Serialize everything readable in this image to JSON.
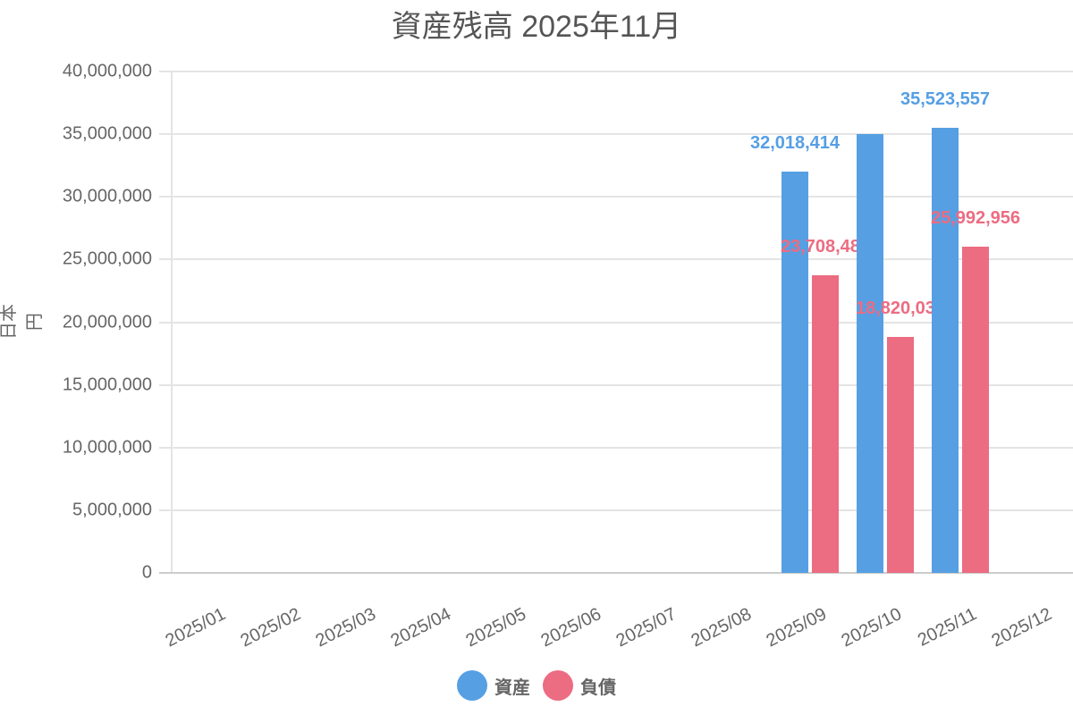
{
  "title": "資産残高 2025年11月",
  "colors": {
    "assets": "#569fe3",
    "liabilities": "#ec6c82"
  },
  "chart_data": {
    "type": "bar",
    "title": "資産残高 2025年11月",
    "xlabel": "",
    "ylabel": "日本円",
    "ylim": [
      0,
      40000000
    ],
    "yticks": [
      "0",
      "5,000,000",
      "10,000,000",
      "15,000,000",
      "20,000,000",
      "25,000,000",
      "30,000,000",
      "35,000,000",
      "40,000,000"
    ],
    "categories": [
      "2025/01",
      "2025/02",
      "2025/03",
      "2025/04",
      "2025/05",
      "2025/06",
      "2025/07",
      "2025/08",
      "2025/09",
      "2025/10",
      "2025/11",
      "2025/12"
    ],
    "series": [
      {
        "name": "資産",
        "values": [
          0,
          0,
          0,
          0,
          0,
          0,
          0,
          0,
          32018414,
          35000000,
          35523557,
          0
        ],
        "labels": [
          "",
          "",
          "",
          "",
          "",
          "",
          "",
          "",
          "32,018,414",
          "",
          "35,523,557",
          ""
        ]
      },
      {
        "name": "負債",
        "values": [
          0,
          0,
          0,
          0,
          0,
          0,
          0,
          0,
          23708481,
          18820035,
          25992956,
          0
        ],
        "labels": [
          "",
          "",
          "",
          "",
          "",
          "",
          "",
          "",
          "23,708,481",
          "18,820,035",
          "25,992,956",
          ""
        ]
      }
    ],
    "grid": true,
    "legend_position": "bottom"
  },
  "legend": [
    {
      "label": "資産"
    },
    {
      "label": "負債"
    }
  ]
}
